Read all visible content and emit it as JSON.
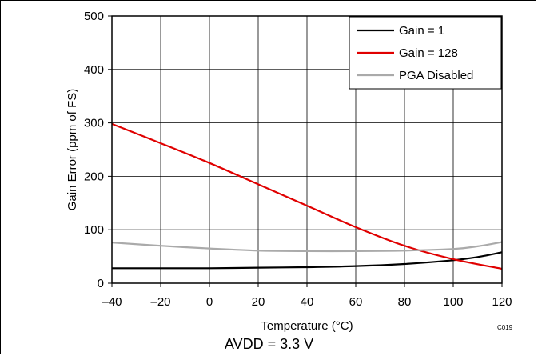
{
  "chart_data": {
    "type": "line",
    "xlabel": "Temperature (°C)",
    "ylabel": "Gain Error (ppm of FS)",
    "xlim": [
      -40,
      120
    ],
    "ylim": [
      0,
      500
    ],
    "x_ticks": [
      -40,
      -20,
      0,
      20,
      40,
      60,
      80,
      100,
      120
    ],
    "y_ticks": [
      0,
      100,
      200,
      300,
      400,
      500
    ],
    "x_tick_labels": [
      "–40",
      "–20",
      "0",
      "20",
      "40",
      "60",
      "80",
      "100",
      "120"
    ],
    "y_tick_labels": [
      "0",
      "100",
      "200",
      "300",
      "400",
      "500"
    ],
    "grid": true,
    "legend_position": "top-right",
    "series": [
      {
        "name": "Gain = 1",
        "color": "#000000",
        "x": [
          -40,
          -20,
          0,
          20,
          40,
          60,
          80,
          100,
          110,
          120
        ],
        "y": [
          28,
          28,
          28,
          29,
          30,
          32,
          36,
          43,
          49,
          58
        ]
      },
      {
        "name": "Gain = 128",
        "color": "#e00000",
        "x": [
          -40,
          -20,
          0,
          20,
          40,
          60,
          80,
          100,
          120
        ],
        "y": [
          298,
          262,
          225,
          185,
          145,
          105,
          70,
          45,
          27
        ]
      },
      {
        "name": "PGA Disabled",
        "color": "#aaaaaa",
        "x": [
          -40,
          -20,
          0,
          20,
          40,
          60,
          80,
          100,
          110,
          120
        ],
        "y": [
          76,
          70,
          65,
          61,
          60,
          60,
          61,
          64,
          69,
          77
        ]
      }
    ],
    "annotation": "C019"
  },
  "caption": "AVDD = 3.3 V"
}
